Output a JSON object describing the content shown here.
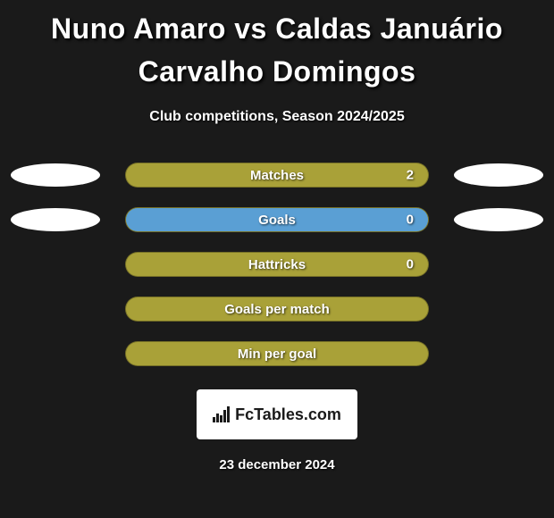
{
  "title": "Nuno Amaro vs Caldas Januário Carvalho Domingos",
  "subtitle": "Club competitions, Season 2024/2025",
  "colors": {
    "background": "#1a1a1a",
    "bar_base": "#a9a138",
    "bar_fill_alt": "#5a9fd4",
    "ellipse": "#ffffff",
    "text": "#ffffff"
  },
  "stats": [
    {
      "label": "Matches",
      "value": "2",
      "left_ellipse": true,
      "right_ellipse": true,
      "fill_pct": 100,
      "fill_color": "#a9a138",
      "base_color": "#a9a138"
    },
    {
      "label": "Goals",
      "value": "0",
      "left_ellipse": true,
      "right_ellipse": true,
      "fill_pct": 100,
      "fill_color": "#5a9fd4",
      "base_color": "#a9a138"
    },
    {
      "label": "Hattricks",
      "value": "0",
      "left_ellipse": false,
      "right_ellipse": false,
      "fill_pct": 0,
      "fill_color": "#5a9fd4",
      "base_color": "#a9a138"
    },
    {
      "label": "Goals per match",
      "value": "",
      "left_ellipse": false,
      "right_ellipse": false,
      "fill_pct": 0,
      "fill_color": "#5a9fd4",
      "base_color": "#a9a138"
    },
    {
      "label": "Min per goal",
      "value": "",
      "left_ellipse": false,
      "right_ellipse": false,
      "fill_pct": 0,
      "fill_color": "#5a9fd4",
      "base_color": "#a9a138"
    }
  ],
  "logo": {
    "text": "FcTables.com"
  },
  "date": "23 december 2024"
}
